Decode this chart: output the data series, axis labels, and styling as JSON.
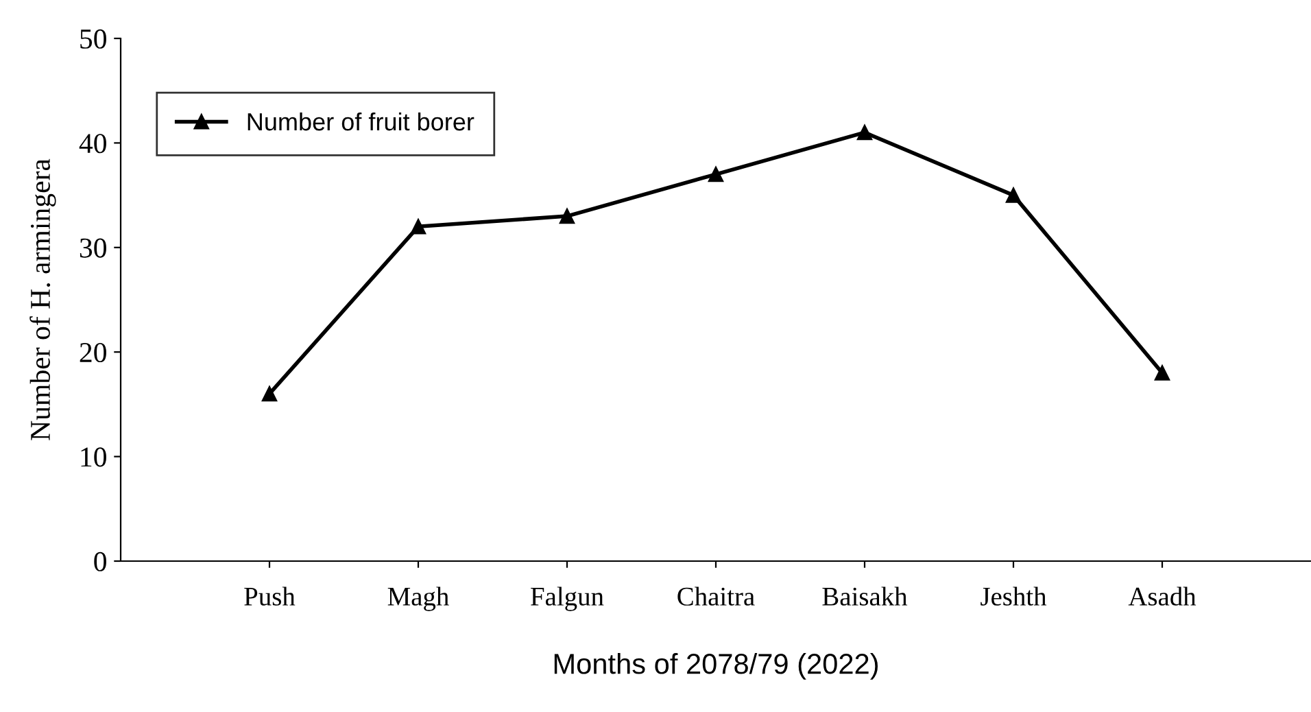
{
  "chart_data": {
    "type": "line",
    "xlabel": "Months of 2078/79 (2022)",
    "ylabel": "Number of H. armingera",
    "categories": [
      "Push",
      "Magh",
      "Falgun",
      "Chaitra",
      "Baisakh",
      "Jeshth",
      "Asadh"
    ],
    "series": [
      {
        "name": "Number of fruit borer",
        "color": "#000000",
        "values": [
          16,
          32,
          33,
          37,
          41,
          35,
          18
        ]
      }
    ],
    "ylim": [
      0,
      50
    ],
    "yticks": [
      0,
      10,
      20,
      30,
      40,
      50
    ],
    "grid": false,
    "legend": "top left",
    "marker": "triangle",
    "line_style": "solid"
  }
}
